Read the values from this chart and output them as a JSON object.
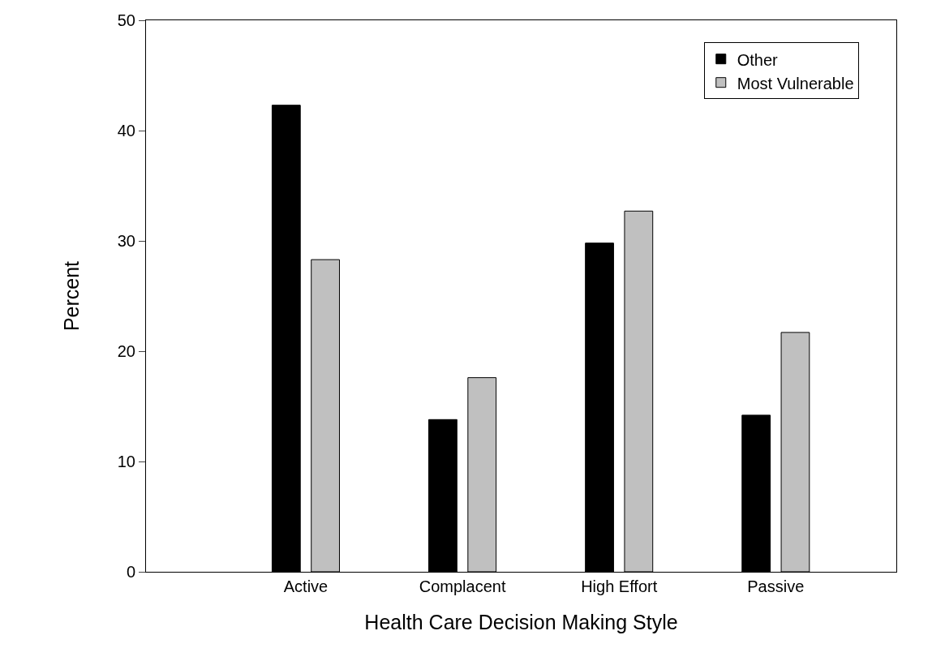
{
  "chart_data": {
    "type": "bar",
    "xlabel": "Health Care Decision Making Style",
    "ylabel": "Percent",
    "categories": [
      "Active",
      "Complacent",
      "High Effort",
      "Passive"
    ],
    "series": [
      {
        "name": "Other",
        "color": "#000000",
        "values": [
          42.3,
          13.8,
          29.8,
          14.2
        ]
      },
      {
        "name": "Most Vulnerable",
        "color": "#c0c0c0",
        "values": [
          28.3,
          17.6,
          32.7,
          21.7
        ]
      }
    ],
    "ylim": [
      0,
      50
    ],
    "yticks": [
      0,
      10,
      20,
      30,
      40,
      50
    ],
    "legend": "top right"
  }
}
